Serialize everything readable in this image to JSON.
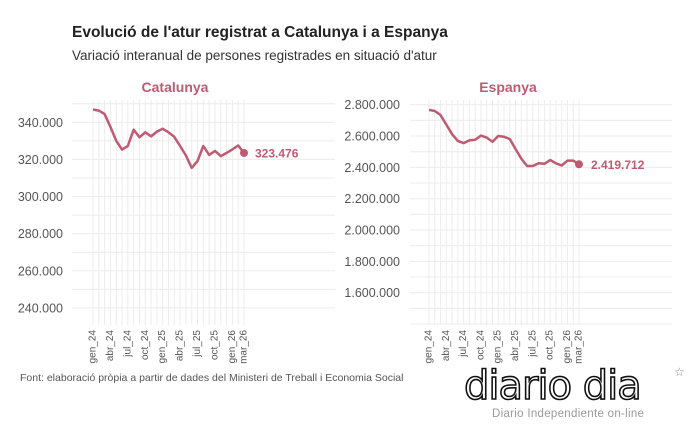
{
  "header": {
    "title": "Evolució de l'atur registrat a Catalunya i a Espanya",
    "subtitle": "Variació interanual de persones registrades en situació d'atur"
  },
  "caption": "Font: elaboració pròpia a partir de dades del Ministeri de Treball i Economia Social",
  "logo": {
    "text": "diario dia",
    "tagline": "Diario Independiente on-line"
  },
  "colors": {
    "line": "#c05a72",
    "grid": "#ececec",
    "axis_text": "#555555"
  },
  "chart_data": [
    {
      "type": "line",
      "title": "Catalunya",
      "x": [
        "gen_24",
        "feb_24",
        "mar_24",
        "abr_24",
        "mai_24",
        "jun_24",
        "jul_24",
        "ago_24",
        "set_24",
        "oct_24",
        "nov_24",
        "des_24",
        "gen_25",
        "feb_25",
        "mar_25",
        "abr_25",
        "mai_25",
        "jun_25",
        "jul_25",
        "ago_25",
        "set_25",
        "oct_25",
        "nov_25",
        "des_25",
        "gen_26",
        "feb_26",
        "mar_26"
      ],
      "x_tick_labels": [
        "gen_24",
        "abr_24",
        "jul_24",
        "oct_24",
        "gen_25",
        "abr_25",
        "jul_25",
        "oct_25",
        "gen_26",
        "mar_26"
      ],
      "x_tick_index": [
        0,
        3,
        6,
        9,
        12,
        15,
        18,
        21,
        24,
        26
      ],
      "values": [
        346900,
        346300,
        344400,
        337500,
        330100,
        325300,
        327200,
        336000,
        331900,
        334600,
        332400,
        335000,
        336500,
        334600,
        332100,
        327200,
        322100,
        315400,
        319100,
        327200,
        322400,
        324600,
        321800,
        323500,
        325400,
        327500,
        323476
      ],
      "y_ticks": [
        240000,
        260000,
        280000,
        300000,
        320000,
        340000
      ],
      "y_tick_labels": [
        "240.000",
        "260.000",
        "280.000",
        "300.000",
        "320.000",
        "340.000"
      ],
      "ylim": [
        230800,
        352000
      ],
      "last_label": "323.476",
      "grid": true
    },
    {
      "type": "line",
      "title": "Espanya",
      "x": [
        "gen_24",
        "feb_24",
        "mar_24",
        "abr_24",
        "mai_24",
        "jun_24",
        "jul_24",
        "ago_24",
        "set_24",
        "oct_24",
        "nov_24",
        "des_24",
        "gen_25",
        "feb_25",
        "mar_25",
        "abr_25",
        "mai_25",
        "jun_25",
        "jul_25",
        "ago_25",
        "set_25",
        "oct_25",
        "nov_25",
        "des_25",
        "gen_26",
        "feb_26",
        "mar_26"
      ],
      "x_tick_labels": [
        "gen_24",
        "abr_24",
        "jul_24",
        "oct_24",
        "gen_25",
        "abr_25",
        "jul_25",
        "oct_25",
        "gen_26",
        "mar_26"
      ],
      "x_tick_index": [
        0,
        3,
        6,
        9,
        12,
        15,
        18,
        21,
        24,
        26
      ],
      "values": [
        2767000,
        2760000,
        2734000,
        2673000,
        2612000,
        2569000,
        2555000,
        2572000,
        2576000,
        2603000,
        2590000,
        2563000,
        2600000,
        2595000,
        2581000,
        2517000,
        2456000,
        2409000,
        2409000,
        2426000,
        2423000,
        2447000,
        2426000,
        2412000,
        2443000,
        2443000,
        2419712
      ],
      "y_ticks": [
        1600000,
        1800000,
        2000000,
        2200000,
        2400000,
        2600000,
        2800000
      ],
      "y_tick_labels": [
        "1.600.000",
        "1.800.000",
        "2.000.000",
        "2.200.000",
        "2.400.000",
        "2.600.000",
        "2.800.000"
      ],
      "ylim": [
        1394000,
        2830000
      ],
      "last_label": "2.419.712",
      "grid": true
    }
  ]
}
